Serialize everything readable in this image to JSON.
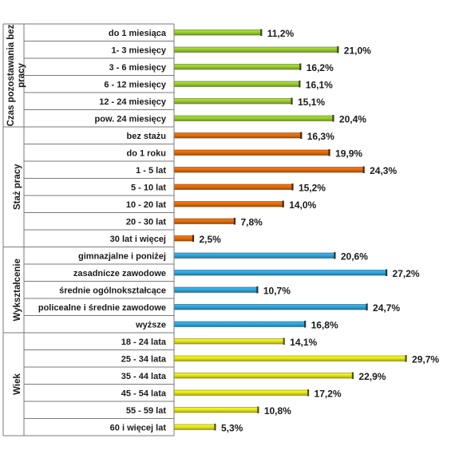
{
  "chart_data": {
    "type": "bar",
    "orientation": "horizontal",
    "xlim": [
      0,
      30
    ],
    "grid": false,
    "value_suffix": "%",
    "groups": [
      {
        "name": "Czas pozostawania bez pracy",
        "color": "#9acd32",
        "categories": [
          "do 1 miesiąca",
          "1- 3 miesięcy",
          "3 - 6 miesięcy",
          "6 - 12 miesięcy",
          "12 - 24 miesięcy",
          "pow. 24 miesięcy"
        ],
        "values": [
          11.2,
          21.0,
          16.2,
          16.1,
          15.1,
          20.4
        ],
        "labels": [
          "11,2%",
          "21,0%",
          "16,2%",
          "16,1%",
          "15,1%",
          "20,4%"
        ]
      },
      {
        "name": "Staż pracy",
        "color": "#e36c0a",
        "categories": [
          "bez stażu",
          "do 1 roku",
          "1 - 5 lat",
          "5 - 10 lat",
          "10 - 20 lat",
          "20 - 30 lat",
          "30 lat i więcej"
        ],
        "values": [
          16.3,
          19.9,
          24.3,
          15.2,
          14.0,
          7.8,
          2.5
        ],
        "labels": [
          "16,3%",
          "19,9%",
          "24,3%",
          "15,2%",
          "14,0%",
          "7,8%",
          "2,5%"
        ]
      },
      {
        "name": "Wykształcenie",
        "color": "#31a6dc",
        "categories": [
          "gimnazjalne i poniżej",
          "zasadnicze zawodowe",
          "średnie ogólnokształcące",
          "policealne i średnie zawodowe",
          "wyższe"
        ],
        "values": [
          20.6,
          27.2,
          10.7,
          24.7,
          16.8
        ],
        "labels": [
          "20,6%",
          "27,2%",
          "10,7%",
          "24,7%",
          "16,8%"
        ]
      },
      {
        "name": "Wiek",
        "color": "#e6e619",
        "categories": [
          "18 - 24 lata",
          "25 - 34 lata",
          "35 - 44 lata",
          "45 - 54 lata",
          "55 - 59 lat",
          "60 i więcej lat"
        ],
        "values": [
          14.1,
          29.7,
          22.9,
          17.2,
          10.8,
          5.3
        ],
        "labels": [
          "14,1%",
          "29,7%",
          "22,9%",
          "17,2%",
          "10,8%",
          "5,3%"
        ]
      }
    ]
  }
}
